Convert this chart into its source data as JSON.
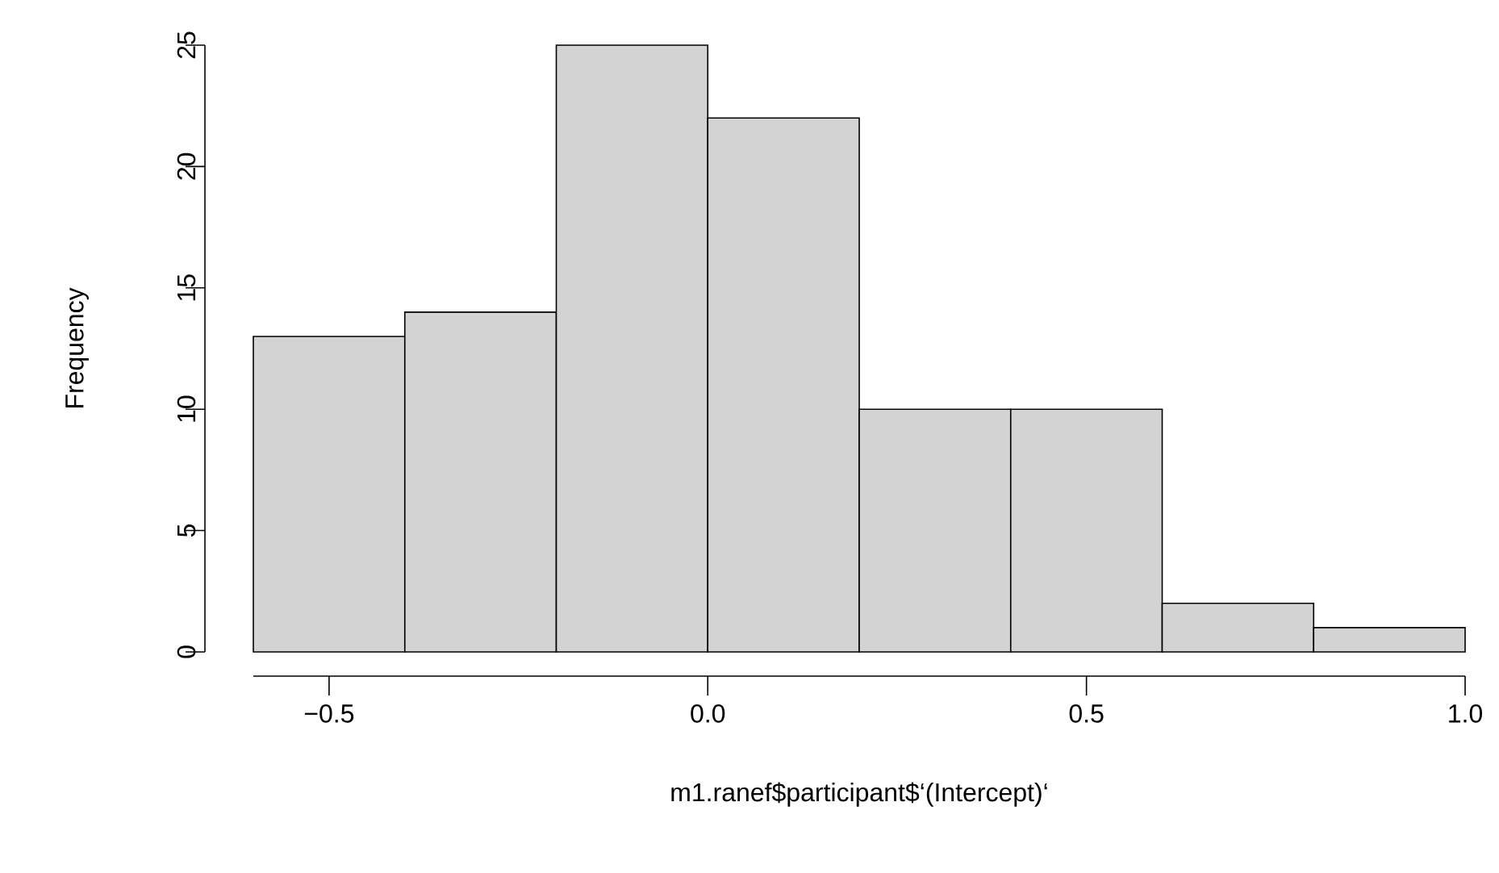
{
  "chart_data": {
    "type": "histogram",
    "xlabel": "m1.ranef$participant$‘(Intercept)‘",
    "ylabel": "Frequency",
    "bins": [
      -0.6,
      -0.4,
      -0.2,
      0.0,
      0.2,
      0.4,
      0.6,
      0.8,
      1.0
    ],
    "values": [
      13,
      14,
      25,
      22,
      10,
      10,
      2,
      1
    ],
    "color": "#d3d3d3",
    "xlim": [
      -0.6,
      1.0
    ],
    "ylim": [
      0,
      25
    ],
    "xticks": [
      {
        "value": -0.5,
        "label": "−0.5"
      },
      {
        "value": 0.0,
        "label": "0.0"
      },
      0.5,
      {
        "value": 1.0,
        "label": "1.0"
      }
    ],
    "yticks": [
      0,
      5,
      10,
      15,
      20,
      25
    ]
  }
}
